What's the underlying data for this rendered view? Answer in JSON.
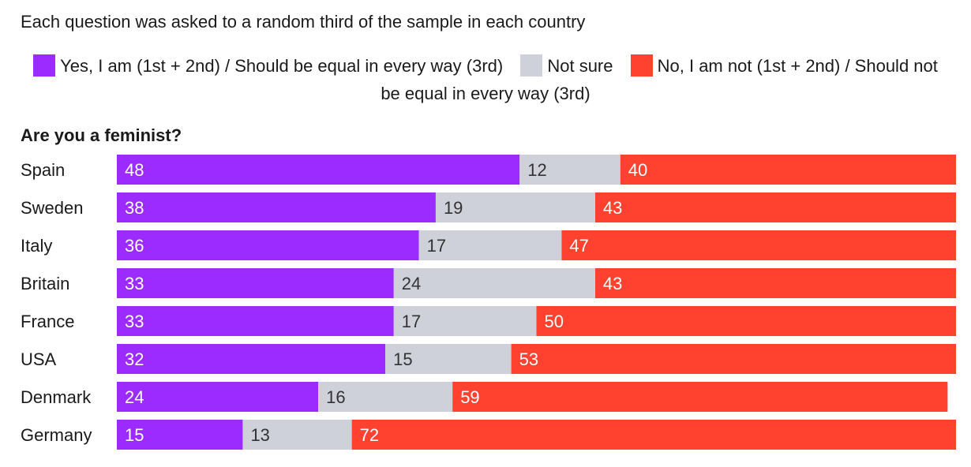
{
  "subtitle": "Each question was asked to a random third of the sample in each country",
  "legend": [
    {
      "label": "Yes, I am (1st + 2nd) / Should be equal in every way (3rd)",
      "color": "#9b2bff"
    },
    {
      "label": "Not sure",
      "color": "#cfd1da"
    },
    {
      "label": "No, I am not (1st + 2nd) / Should not be equal in every way (3rd)",
      "color": "#ff4230"
    }
  ],
  "chart_data": {
    "type": "bar",
    "orientation": "horizontal",
    "stacked": true,
    "title": "Are you a feminist?",
    "categories": [
      "Spain",
      "Sweden",
      "Italy",
      "Britain",
      "France",
      "USA",
      "Denmark",
      "Germany"
    ],
    "series": [
      {
        "name": "Yes, I am (1st + 2nd) / Should be equal in every way (3rd)",
        "color": "#9b2bff",
        "label_color": "#ffffff",
        "values": [
          48,
          38,
          36,
          33,
          33,
          32,
          24,
          15
        ]
      },
      {
        "name": "Not sure",
        "color": "#cfd1da",
        "label_color": "#333333",
        "values": [
          12,
          19,
          17,
          24,
          17,
          15,
          16,
          13
        ]
      },
      {
        "name": "No, I am not (1st + 2nd) / Should not be equal in every way (3rd)",
        "color": "#ff4230",
        "label_color": "#ffffff",
        "values": [
          40,
          43,
          47,
          43,
          50,
          53,
          59,
          72
        ]
      }
    ],
    "xlim": [
      0,
      100
    ],
    "grid": false,
    "legend_position": "top-center"
  }
}
